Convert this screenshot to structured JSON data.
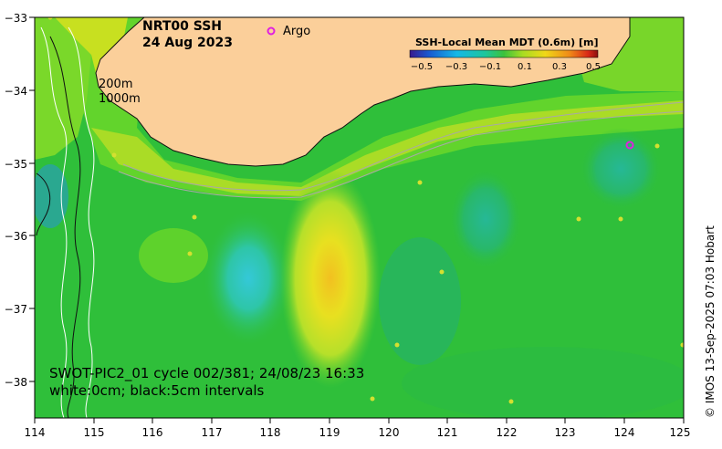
{
  "title": {
    "product": "NRT00 SSH",
    "date": "24 Aug 2023"
  },
  "legend": {
    "argo_label": "Argo",
    "argo_color": "#e020e0"
  },
  "isobaths": {
    "label_1": "200m",
    "label_2": "1000m"
  },
  "colorbar": {
    "title": "SSH-Local Mean MDT (0.6m) [m]",
    "ticks": [
      "−0.5",
      "−0.3",
      "−0.1",
      "0.1",
      "0.3",
      "0.5"
    ],
    "range": [
      -0.6,
      0.6
    ],
    "colors": [
      "#3a1a8e",
      "#1a6fd8",
      "#18c4e0",
      "#20c896",
      "#4cc43a",
      "#c8e020",
      "#f0d018",
      "#f08818",
      "#e02818",
      "#8a1010"
    ]
  },
  "axes": {
    "x_ticks": [
      "114",
      "115",
      "116",
      "117",
      "118",
      "119",
      "120",
      "121",
      "122",
      "123",
      "124",
      "125"
    ],
    "y_ticks": [
      "−33",
      "−34",
      "−35",
      "−36",
      "−37",
      "−38"
    ],
    "lon_range": [
      114,
      125
    ],
    "lat_range": [
      -33,
      -38.5
    ]
  },
  "swot_caption": {
    "line1": "SWOT-PIC2_01 cycle 002/381; 24/08/23 16:33",
    "line2": "white:0cm; black:5cm intervals"
  },
  "credit": "© IMOS 13-Sep-2025 07:03 Hobart",
  "colors": {
    "land": "#fbcf9a",
    "sea_base": "#2fbf3a",
    "sea_mid": "#5cd12e",
    "cool_core": "#34d0c8",
    "warm_core": "#f2d422"
  },
  "argo_floats": [
    {
      "lon": 124.1,
      "lat": -34.75
    }
  ]
}
